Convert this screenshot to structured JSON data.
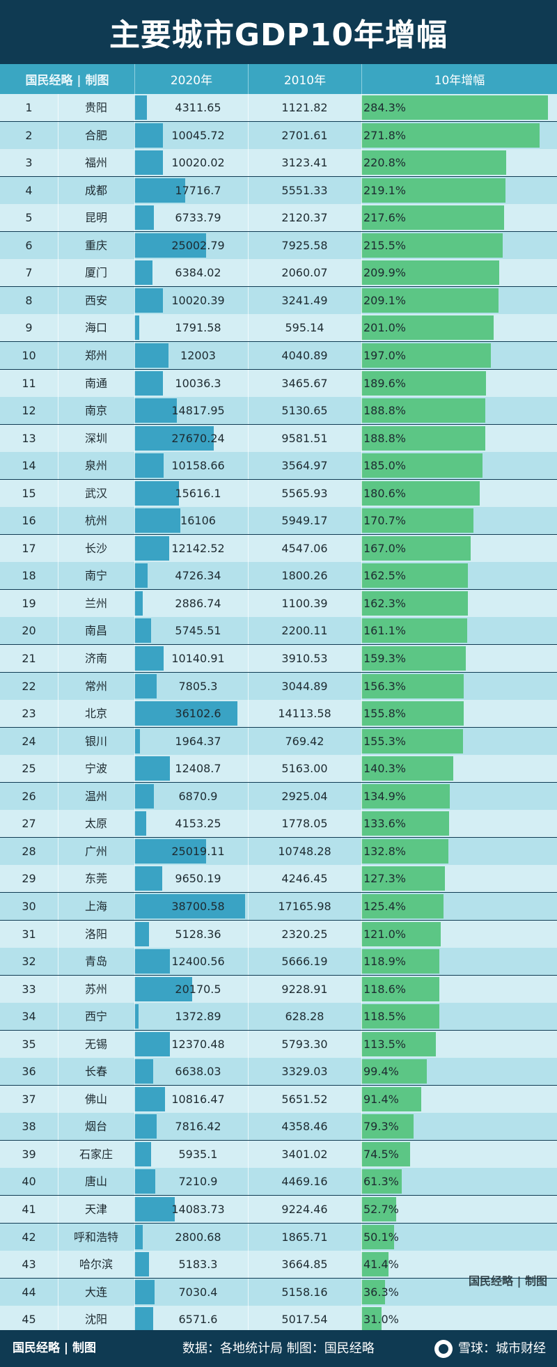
{
  "title": "主要城市GDP10年增幅",
  "header": {
    "brand": "国民经略 | 制图",
    "col_2020": "2020年",
    "col_2010": "2010年",
    "col_growth": "10年增幅"
  },
  "watermark": "国民经略 | 制图",
  "footer": {
    "brand": "国民经略 | 制图",
    "source": "数据：各地统计局 制图：国民经略",
    "xueqiu": "雪球：城市财经",
    "xueqiu_icon": "snowball-icon"
  },
  "colors": {
    "title_bg": "#0f3a52",
    "header_bg": "#3aa6c2",
    "gdp_bar": "#3aa3c4",
    "growth_bar": "#5cc685",
    "row_light": "#d4eef4",
    "row_dark": "#b4e1eb"
  },
  "chart_data": {
    "type": "table",
    "columns": [
      "",
      "",
      "2020年",
      "2010年",
      "10年增幅"
    ],
    "gdp_bar_max": 38700.58,
    "growth_bar_max": 284.3,
    "rows": [
      {
        "rank": "1",
        "city": "贵阳",
        "gdp2020": "4311.65",
        "gdp2010": "1121.82",
        "growth": "284.3%",
        "v2020": 4311.65,
        "vgrowth": 284.3
      },
      {
        "rank": "2",
        "city": "合肥",
        "gdp2020": "10045.72",
        "gdp2010": "2701.61",
        "growth": "271.8%",
        "v2020": 10045.72,
        "vgrowth": 271.8
      },
      {
        "rank": "3",
        "city": "福州",
        "gdp2020": "10020.02",
        "gdp2010": "3123.41",
        "growth": "220.8%",
        "v2020": 10020.02,
        "vgrowth": 220.8
      },
      {
        "rank": "4",
        "city": "成都",
        "gdp2020": "17716.7",
        "gdp2010": "5551.33",
        "growth": "219.1%",
        "v2020": 17716.7,
        "vgrowth": 219.1
      },
      {
        "rank": "5",
        "city": "昆明",
        "gdp2020": "6733.79",
        "gdp2010": "2120.37",
        "growth": "217.6%",
        "v2020": 6733.79,
        "vgrowth": 217.6
      },
      {
        "rank": "6",
        "city": "重庆",
        "gdp2020": "25002.79",
        "gdp2010": "7925.58",
        "growth": "215.5%",
        "v2020": 25002.79,
        "vgrowth": 215.5
      },
      {
        "rank": "7",
        "city": "厦门",
        "gdp2020": "6384.02",
        "gdp2010": "2060.07",
        "growth": "209.9%",
        "v2020": 6384.02,
        "vgrowth": 209.9
      },
      {
        "rank": "8",
        "city": "西安",
        "gdp2020": "10020.39",
        "gdp2010": "3241.49",
        "growth": "209.1%",
        "v2020": 10020.39,
        "vgrowth": 209.1
      },
      {
        "rank": "9",
        "city": "海口",
        "gdp2020": "1791.58",
        "gdp2010": "595.14",
        "growth": "201.0%",
        "v2020": 1791.58,
        "vgrowth": 201.0
      },
      {
        "rank": "10",
        "city": "郑州",
        "gdp2020": "12003",
        "gdp2010": "4040.89",
        "growth": "197.0%",
        "v2020": 12003,
        "vgrowth": 197.0
      },
      {
        "rank": "11",
        "city": "南通",
        "gdp2020": "10036.3",
        "gdp2010": "3465.67",
        "growth": "189.6%",
        "v2020": 10036.3,
        "vgrowth": 189.6
      },
      {
        "rank": "12",
        "city": "南京",
        "gdp2020": "14817.95",
        "gdp2010": "5130.65",
        "growth": "188.8%",
        "v2020": 14817.95,
        "vgrowth": 188.8
      },
      {
        "rank": "13",
        "city": "深圳",
        "gdp2020": "27670.24",
        "gdp2010": "9581.51",
        "growth": "188.8%",
        "v2020": 27670.24,
        "vgrowth": 188.8
      },
      {
        "rank": "14",
        "city": "泉州",
        "gdp2020": "10158.66",
        "gdp2010": "3564.97",
        "growth": "185.0%",
        "v2020": 10158.66,
        "vgrowth": 185.0
      },
      {
        "rank": "15",
        "city": "武汉",
        "gdp2020": "15616.1",
        "gdp2010": "5565.93",
        "growth": "180.6%",
        "v2020": 15616.1,
        "vgrowth": 180.6
      },
      {
        "rank": "16",
        "city": "杭州",
        "gdp2020": "16106",
        "gdp2010": "5949.17",
        "growth": "170.7%",
        "v2020": 16106,
        "vgrowth": 170.7
      },
      {
        "rank": "17",
        "city": "长沙",
        "gdp2020": "12142.52",
        "gdp2010": "4547.06",
        "growth": "167.0%",
        "v2020": 12142.52,
        "vgrowth": 167.0
      },
      {
        "rank": "18",
        "city": "南宁",
        "gdp2020": "4726.34",
        "gdp2010": "1800.26",
        "growth": "162.5%",
        "v2020": 4726.34,
        "vgrowth": 162.5
      },
      {
        "rank": "19",
        "city": "兰州",
        "gdp2020": "2886.74",
        "gdp2010": "1100.39",
        "growth": "162.3%",
        "v2020": 2886.74,
        "vgrowth": 162.3
      },
      {
        "rank": "20",
        "city": "南昌",
        "gdp2020": "5745.51",
        "gdp2010": "2200.11",
        "growth": "161.1%",
        "v2020": 5745.51,
        "vgrowth": 161.1
      },
      {
        "rank": "21",
        "city": "济南",
        "gdp2020": "10140.91",
        "gdp2010": "3910.53",
        "growth": "159.3%",
        "v2020": 10140.91,
        "vgrowth": 159.3
      },
      {
        "rank": "22",
        "city": "常州",
        "gdp2020": "7805.3",
        "gdp2010": "3044.89",
        "growth": "156.3%",
        "v2020": 7805.3,
        "vgrowth": 156.3
      },
      {
        "rank": "23",
        "city": "北京",
        "gdp2020": "36102.6",
        "gdp2010": "14113.58",
        "growth": "155.8%",
        "v2020": 36102.6,
        "vgrowth": 155.8
      },
      {
        "rank": "24",
        "city": "银川",
        "gdp2020": "1964.37",
        "gdp2010": "769.42",
        "growth": "155.3%",
        "v2020": 1964.37,
        "vgrowth": 155.3
      },
      {
        "rank": "25",
        "city": "宁波",
        "gdp2020": "12408.7",
        "gdp2010": "5163.00",
        "growth": "140.3%",
        "v2020": 12408.7,
        "vgrowth": 140.3
      },
      {
        "rank": "26",
        "city": "温州",
        "gdp2020": "6870.9",
        "gdp2010": "2925.04",
        "growth": "134.9%",
        "v2020": 6870.9,
        "vgrowth": 134.9
      },
      {
        "rank": "27",
        "city": "太原",
        "gdp2020": "4153.25",
        "gdp2010": "1778.05",
        "growth": "133.6%",
        "v2020": 4153.25,
        "vgrowth": 133.6
      },
      {
        "rank": "28",
        "city": "广州",
        "gdp2020": "25019.11",
        "gdp2010": "10748.28",
        "growth": "132.8%",
        "v2020": 25019.11,
        "vgrowth": 132.8
      },
      {
        "rank": "29",
        "city": "东莞",
        "gdp2020": "9650.19",
        "gdp2010": "4246.45",
        "growth": "127.3%",
        "v2020": 9650.19,
        "vgrowth": 127.3
      },
      {
        "rank": "30",
        "city": "上海",
        "gdp2020": "38700.58",
        "gdp2010": "17165.98",
        "growth": "125.4%",
        "v2020": 38700.58,
        "vgrowth": 125.4
      },
      {
        "rank": "31",
        "city": "洛阳",
        "gdp2020": "5128.36",
        "gdp2010": "2320.25",
        "growth": "121.0%",
        "v2020": 5128.36,
        "vgrowth": 121.0
      },
      {
        "rank": "32",
        "city": "青岛",
        "gdp2020": "12400.56",
        "gdp2010": "5666.19",
        "growth": "118.9%",
        "v2020": 12400.56,
        "vgrowth": 118.9
      },
      {
        "rank": "33",
        "city": "苏州",
        "gdp2020": "20170.5",
        "gdp2010": "9228.91",
        "growth": "118.6%",
        "v2020": 20170.5,
        "vgrowth": 118.6
      },
      {
        "rank": "34",
        "city": "西宁",
        "gdp2020": "1372.89",
        "gdp2010": "628.28",
        "growth": "118.5%",
        "v2020": 1372.89,
        "vgrowth": 118.5
      },
      {
        "rank": "35",
        "city": "无锡",
        "gdp2020": "12370.48",
        "gdp2010": "5793.30",
        "growth": "113.5%",
        "v2020": 12370.48,
        "vgrowth": 113.5
      },
      {
        "rank": "36",
        "city": "长春",
        "gdp2020": "6638.03",
        "gdp2010": "3329.03",
        "growth": "99.4%",
        "v2020": 6638.03,
        "vgrowth": 99.4
      },
      {
        "rank": "37",
        "city": "佛山",
        "gdp2020": "10816.47",
        "gdp2010": "5651.52",
        "growth": "91.4%",
        "v2020": 10816.47,
        "vgrowth": 91.4
      },
      {
        "rank": "38",
        "city": "烟台",
        "gdp2020": "7816.42",
        "gdp2010": "4358.46",
        "growth": "79.3%",
        "v2020": 7816.42,
        "vgrowth": 79.3
      },
      {
        "rank": "39",
        "city": "石家庄",
        "gdp2020": "5935.1",
        "gdp2010": "3401.02",
        "growth": "74.5%",
        "v2020": 5935.1,
        "vgrowth": 74.5
      },
      {
        "rank": "40",
        "city": "唐山",
        "gdp2020": "7210.9",
        "gdp2010": "4469.16",
        "growth": "61.3%",
        "v2020": 7210.9,
        "vgrowth": 61.3
      },
      {
        "rank": "41",
        "city": "天津",
        "gdp2020": "14083.73",
        "gdp2010": "9224.46",
        "growth": "52.7%",
        "v2020": 14083.73,
        "vgrowth": 52.7
      },
      {
        "rank": "42",
        "city": "呼和浩特",
        "gdp2020": "2800.68",
        "gdp2010": "1865.71",
        "growth": "50.1%",
        "v2020": 2800.68,
        "vgrowth": 50.1
      },
      {
        "rank": "43",
        "city": "哈尔滨",
        "gdp2020": "5183.3",
        "gdp2010": "3664.85",
        "growth": "41.4%",
        "v2020": 5183.3,
        "vgrowth": 41.4
      },
      {
        "rank": "44",
        "city": "大连",
        "gdp2020": "7030.4",
        "gdp2010": "5158.16",
        "growth": "36.3%",
        "v2020": 7030.4,
        "vgrowth": 36.3
      },
      {
        "rank": "45",
        "city": "沈阳",
        "gdp2020": "6571.6",
        "gdp2010": "5017.54",
        "growth": "31.0%",
        "v2020": 6571.6,
        "vgrowth": 31.0
      }
    ]
  }
}
